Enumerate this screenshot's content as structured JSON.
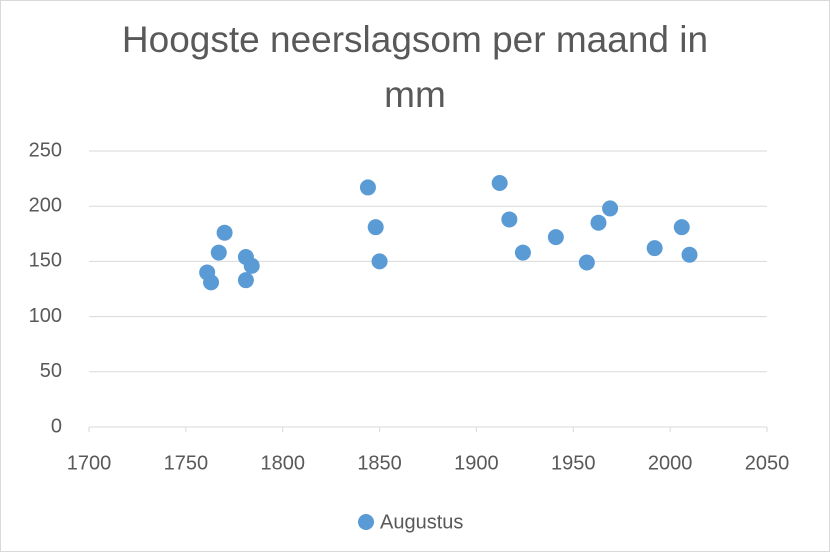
{
  "chart_data": {
    "type": "scatter",
    "title": "Hoogste neerslagsom per maand in mm",
    "series": [
      {
        "name": "Augustus",
        "color": "#5b9bd5",
        "x": [
          1761,
          1763,
          1767,
          1770,
          1781,
          1781,
          1784,
          1844,
          1848,
          1850,
          1912,
          1917,
          1924,
          1941,
          1957,
          1963,
          1969,
          1992,
          2006,
          2010
        ],
        "values": [
          140,
          131,
          158,
          176,
          154,
          133,
          146,
          217,
          181,
          150,
          221,
          188,
          158,
          172,
          149,
          185,
          198,
          162,
          181,
          156
        ]
      }
    ],
    "xlim": [
      1700,
      2050
    ],
    "xticks": [
      1700,
      1750,
      1800,
      1850,
      1900,
      1950,
      2000,
      2050
    ],
    "ylim": [
      0,
      250
    ],
    "yticks": [
      0,
      50,
      100,
      150,
      200,
      250
    ],
    "grid": true,
    "legend": "bottom"
  }
}
